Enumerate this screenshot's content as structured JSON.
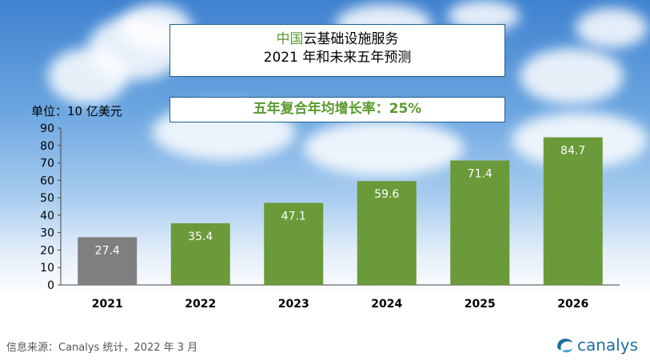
{
  "title": {
    "accent": "中国",
    "line1_rest": "云基础设施服务",
    "line2": "2021 年和未来五年预测"
  },
  "cagr_label": "五年复合年均增长率：25%",
  "unit_label": "单位：10 亿美元",
  "source": "信息来源：Canalys 统计，2022 年 3 月",
  "logo_text": "canalys",
  "logo_icon": "canalys-swoosh-icon",
  "colors": {
    "bar_actual": "#7f7f7f",
    "bar_forecast": "#6b9a3a",
    "accent": "#5a9a2e",
    "border": "#1f5f8b"
  },
  "chart_data": {
    "type": "bar",
    "title": "中国云基础设施服务 2021 年和未来五年预测",
    "ylabel": "单位：10 亿美元",
    "xlabel": "",
    "categories": [
      "2021",
      "2022",
      "2023",
      "2024",
      "2025",
      "2026"
    ],
    "values": [
      27.4,
      35.4,
      47.1,
      59.6,
      71.4,
      84.7
    ],
    "value_labels": [
      "27.4",
      "35.4",
      "47.1",
      "59.6",
      "71.4",
      "84.7"
    ],
    "bar_colors": [
      "#7f7f7f",
      "#6b9a3a",
      "#6b9a3a",
      "#6b9a3a",
      "#6b9a3a",
      "#6b9a3a"
    ],
    "ylim": [
      0,
      90
    ],
    "yticks": [
      "0",
      "10",
      "20",
      "30",
      "40",
      "50",
      "60",
      "70",
      "80",
      "90"
    ],
    "grid": false,
    "legend": "none"
  }
}
